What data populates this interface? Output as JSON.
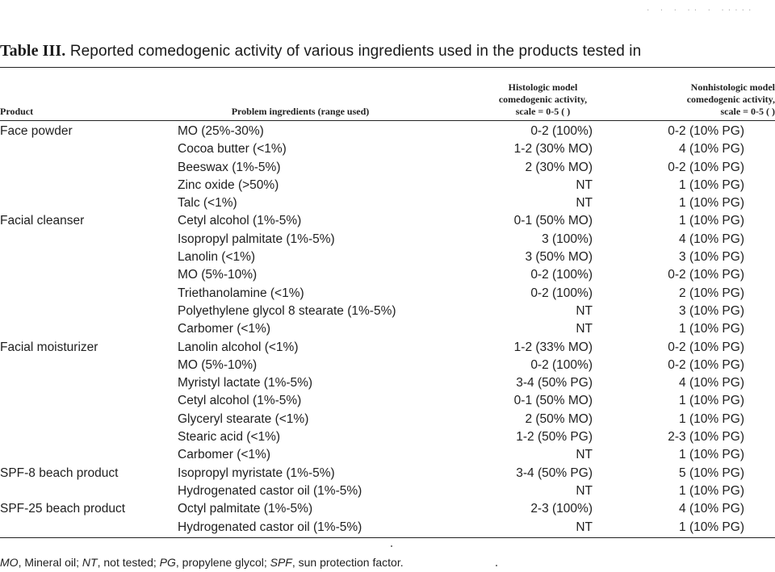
{
  "table": {
    "label": "Table III.",
    "caption": "Reported comedogenic activity of various ingredients used in the products tested in",
    "headers": {
      "product": "Product",
      "problem": "Problem ingredients (range used)",
      "histologic": [
        "Histologic model",
        "comedogenic activity,",
        "scale = 0-5 ( )"
      ],
      "nonhistologic": [
        "Nonhistologic model",
        "comedogenic activity,",
        "scale = 0-5 ( )"
      ]
    },
    "rows": [
      {
        "product": "Face powder",
        "ingredient": "MO (25%-30%)",
        "histologic": "0-2 (100%)",
        "nonhistologic": "0-2 (10% PG)"
      },
      {
        "product": "",
        "ingredient": "Cocoa butter (<1%)",
        "histologic": "1-2 (30% MO)",
        "nonhistologic": "4 (10% PG)"
      },
      {
        "product": "",
        "ingredient": "Beeswax (1%-5%)",
        "histologic": "2 (30% MO)",
        "nonhistologic": "0-2 (10% PG)"
      },
      {
        "product": "",
        "ingredient": "Zinc oxide (>50%)",
        "histologic": "NT",
        "nonhistologic": "1 (10% PG)"
      },
      {
        "product": "",
        "ingredient": "Talc (<1%)",
        "histologic": "NT",
        "nonhistologic": "1 (10% PG)"
      },
      {
        "product": "Facial cleanser",
        "ingredient": "Cetyl alcohol (1%-5%)",
        "histologic": "0-1 (50% MO)",
        "nonhistologic": "1 (10% PG)"
      },
      {
        "product": "",
        "ingredient": "Isopropyl palmitate (1%-5%)",
        "histologic": "3 (100%)",
        "nonhistologic": "4 (10% PG)"
      },
      {
        "product": "",
        "ingredient": "Lanolin (<1%)",
        "histologic": "3 (50% MO)",
        "nonhistologic": "3 (10% PG)"
      },
      {
        "product": "",
        "ingredient": "MO (5%-10%)",
        "histologic": "0-2 (100%)",
        "nonhistologic": "0-2 (10% PG)"
      },
      {
        "product": "",
        "ingredient": "Triethanolamine (<1%)",
        "histologic": "0-2 (100%)",
        "nonhistologic": "2 (10% PG)"
      },
      {
        "product": "",
        "ingredient": "Polyethylene glycol 8 stearate (1%-5%)",
        "histologic": "NT",
        "nonhistologic": "3 (10% PG)"
      },
      {
        "product": "",
        "ingredient": "Carbomer (<1%)",
        "histologic": "NT",
        "nonhistologic": "1 (10% PG)"
      },
      {
        "product": "Facial moisturizer",
        "ingredient": "Lanolin alcohol (<1%)",
        "histologic": "1-2 (33% MO)",
        "nonhistologic": "0-2 (10% PG)"
      },
      {
        "product": "",
        "ingredient": "MO (5%-10%)",
        "histologic": "0-2 (100%)",
        "nonhistologic": "0-2 (10% PG)"
      },
      {
        "product": "",
        "ingredient": "Myristyl lactate (1%-5%)",
        "histologic": "3-4 (50% PG)",
        "nonhistologic": "4 (10% PG)"
      },
      {
        "product": "",
        "ingredient": "Cetyl alcohol (1%-5%)",
        "histologic": "0-1 (50% MO)",
        "nonhistologic": "1 (10% PG)"
      },
      {
        "product": "",
        "ingredient": "Glyceryl stearate (<1%)",
        "histologic": "2 (50% MO)",
        "nonhistologic": "1 (10% PG)"
      },
      {
        "product": "",
        "ingredient": "Stearic acid (<1%)",
        "histologic": "1-2 (50% PG)",
        "nonhistologic": "2-3 (10% PG)"
      },
      {
        "product": "",
        "ingredient": "Carbomer (<1%)",
        "histologic": "NT",
        "nonhistologic": "1 (10% PG)"
      },
      {
        "product": "SPF-8 beach product",
        "ingredient": "Isopropyl myristate (1%-5%)",
        "histologic": "3-4 (50% PG)",
        "nonhistologic": "5 (10% PG)"
      },
      {
        "product": "",
        "ingredient": "Hydrogenated castor oil (1%-5%)",
        "histologic": "NT",
        "nonhistologic": "1 (10% PG)"
      },
      {
        "product": "SPF-25 beach product",
        "ingredient": "Octyl palmitate (1%-5%)",
        "histologic": "2-3 (100%)",
        "nonhistologic": "4 (10% PG)"
      },
      {
        "product": "",
        "ingredient": "Hydrogenated castor oil (1%-5%)",
        "histologic": "NT",
        "nonhistologic": "1 (10% PG)"
      }
    ],
    "footnote": {
      "mo_abbr": "MO",
      "mo_text": ", Mineral oil; ",
      "nt_abbr": "NT",
      "nt_text": ", not tested; ",
      "pg_abbr": "PG",
      "pg_text": ", propylene glycol; ",
      "spf_abbr": "SPF",
      "spf_text": ", sun protection factor."
    }
  },
  "colors": {
    "text": "#1f1f1f",
    "background": "#ffffff",
    "rule": "#222222"
  }
}
